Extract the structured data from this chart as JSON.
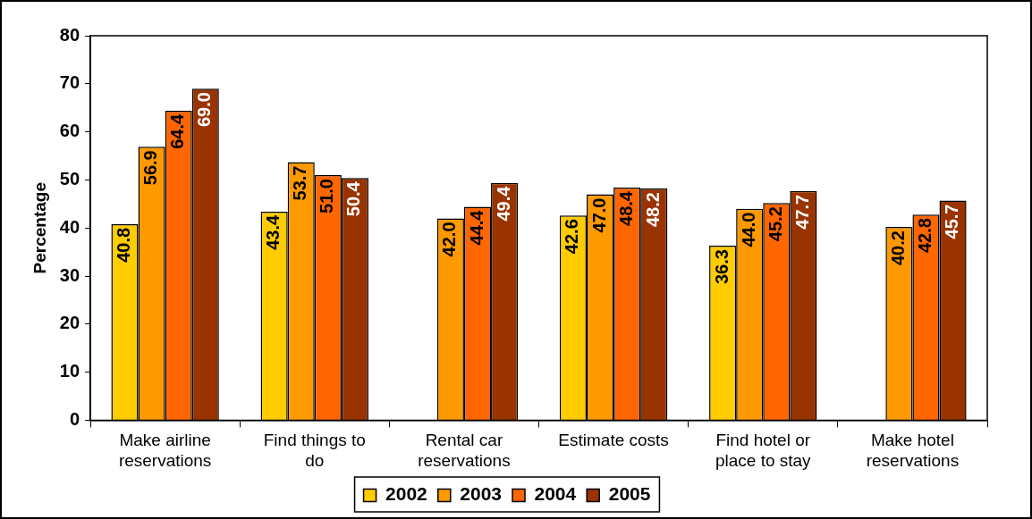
{
  "chart_data": {
    "type": "bar",
    "ylabel": "Percentage",
    "categories": [
      "Make airline reservations",
      "Find things to do",
      "Rental car reservations",
      "Estimate costs",
      "Find hotel or place to stay",
      "Make hotel reservations"
    ],
    "series": [
      {
        "name": "2002",
        "color": "#ffcc00",
        "values": [
          40.8,
          43.4,
          null,
          42.6,
          36.3,
          null
        ],
        "value_labels": [
          "40.8",
          "43.4",
          null,
          "42.6",
          "36.3",
          null
        ]
      },
      {
        "name": "2003",
        "color": "#ff9900",
        "values": [
          56.9,
          53.7,
          42.0,
          47.0,
          44.0,
          40.2
        ],
        "value_labels": [
          "56.9",
          "53.7",
          "42.0",
          "47.0",
          "44.0",
          "40.2"
        ]
      },
      {
        "name": "2004",
        "color": "#ff6600",
        "values": [
          64.4,
          51.0,
          44.4,
          48.4,
          45.2,
          42.8
        ],
        "value_labels": [
          "64.4",
          "51.0",
          "44.4",
          "48.4",
          "45.2",
          "42.8"
        ]
      },
      {
        "name": "2005",
        "color": "#993300",
        "values": [
          69.0,
          50.4,
          49.4,
          48.2,
          47.7,
          45.7
        ],
        "value_labels": [
          "69.0",
          "50.4",
          "49.4",
          "48.2",
          "47.7",
          "45.7"
        ]
      }
    ],
    "ylim": [
      0,
      80
    ],
    "yticks": [
      0,
      10,
      20,
      30,
      40,
      50,
      60,
      70,
      80
    ],
    "grid": false,
    "legend": "bottom"
  }
}
